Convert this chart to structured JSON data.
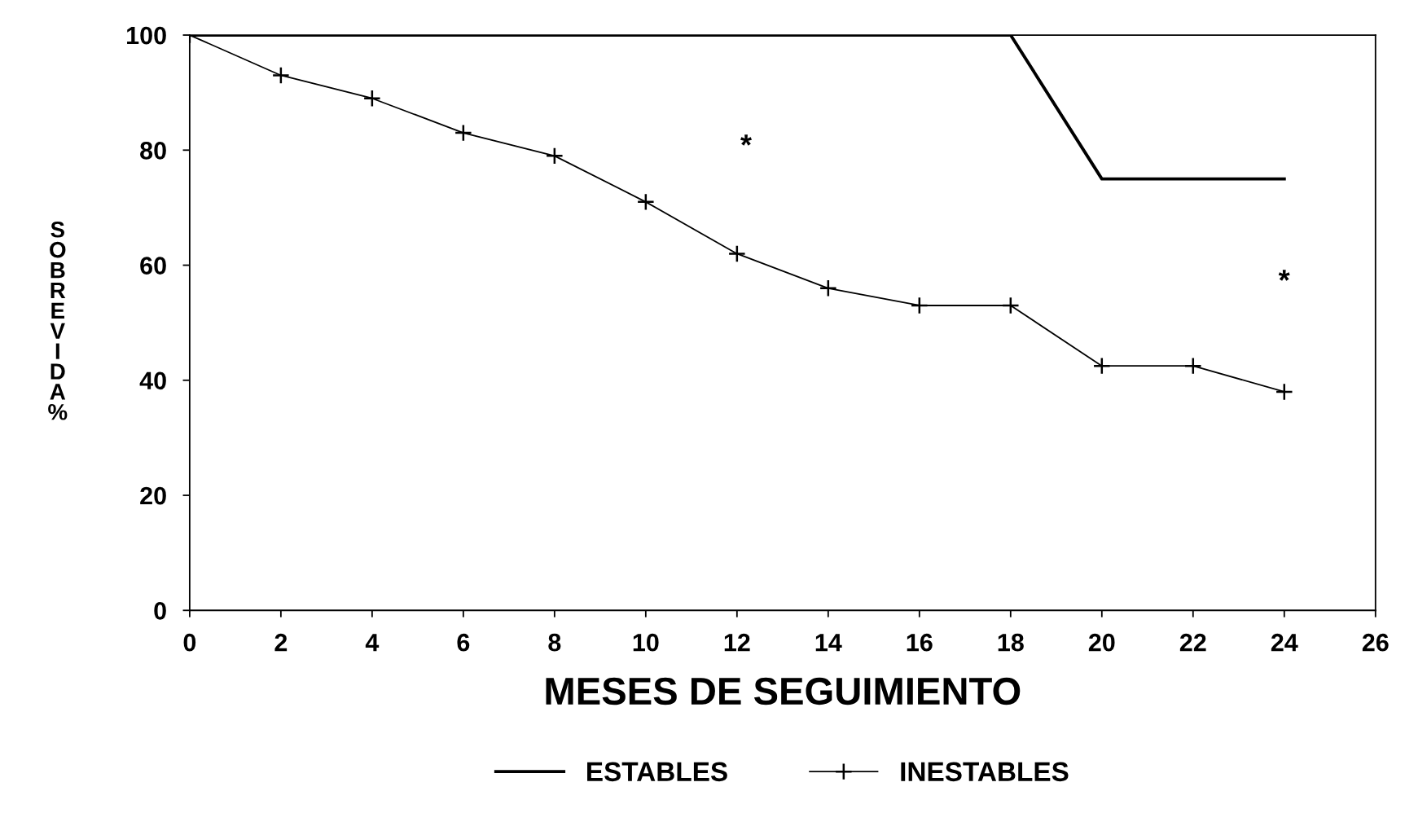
{
  "chart_data": {
    "type": "line",
    "xlabel": "MESES DE SEGUIMIENTO",
    "ylabel": "SOBREVIDA %",
    "series": [
      {
        "name": "ESTABLES",
        "color": "#000000",
        "marker": "none",
        "x": [
          0,
          2,
          4,
          6,
          8,
          10,
          12,
          14,
          16,
          18,
          20,
          22,
          24
        ],
        "values": [
          100,
          100,
          100,
          100,
          100,
          100,
          100,
          100,
          100,
          100,
          75,
          75,
          75
        ]
      },
      {
        "name": "INESTABLES",
        "color": "#000000",
        "marker": "cross",
        "x": [
          0,
          2,
          4,
          6,
          8,
          10,
          12,
          14,
          16,
          18,
          20,
          22,
          24
        ],
        "values": [
          100,
          93,
          89,
          83,
          79,
          71,
          62,
          56,
          53,
          53,
          42.5,
          42.5,
          38
        ]
      }
    ],
    "xlim": [
      0,
      26
    ],
    "xticks": [
      0,
      2,
      4,
      6,
      8,
      10,
      12,
      14,
      16,
      18,
      20,
      22,
      24,
      26
    ],
    "ylim": [
      0,
      100
    ],
    "yticks": [
      0,
      20,
      40,
      60,
      80,
      100
    ],
    "annotations": [
      "*",
      "*"
    ],
    "grid": false,
    "legend": "bottom",
    "line_style": "solid"
  }
}
